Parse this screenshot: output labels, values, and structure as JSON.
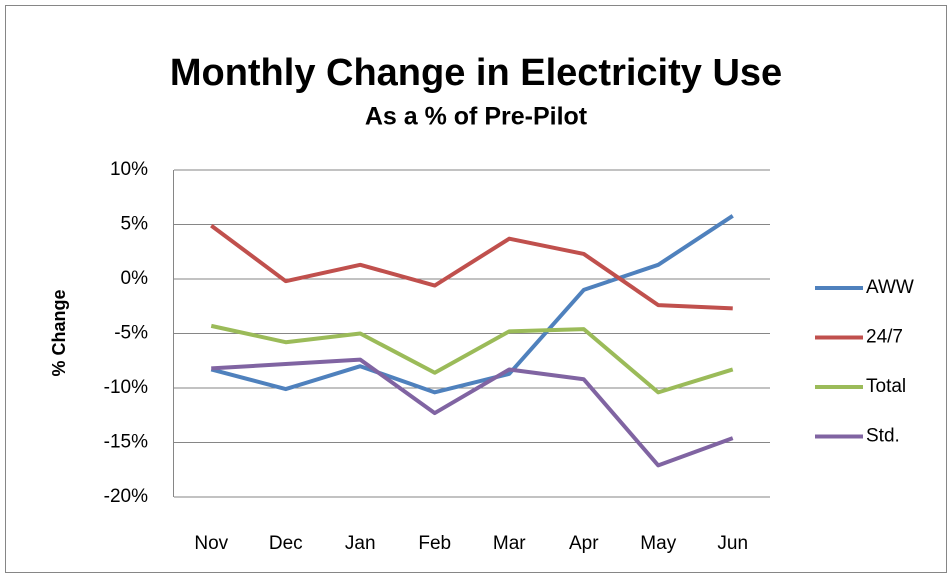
{
  "chart_data": {
    "type": "line",
    "title": "Monthly Change in Electricity Use",
    "subtitle": "As a % of Pre-Pilot",
    "y_label": "% Change",
    "categories": [
      "Nov",
      "Dec",
      "Jan",
      "Feb",
      "Mar",
      "Apr",
      "May",
      "Jun"
    ],
    "series": [
      {
        "name": "AWW",
        "color": "#4f81bd",
        "values": [
          -8.3,
          -10.1,
          -8.0,
          -10.4,
          -8.7,
          -1.0,
          1.3,
          5.8
        ]
      },
      {
        "name": "24/7",
        "color": "#c0504d",
        "values": [
          4.9,
          -0.2,
          1.3,
          -0.6,
          3.7,
          2.3,
          -2.4,
          -2.7
        ]
      },
      {
        "name": "Total",
        "color": "#9bbb59",
        "values": [
          -4.3,
          -5.8,
          -5.0,
          -8.6,
          -4.8,
          -4.6,
          -10.4,
          -8.3
        ]
      },
      {
        "name": "Std.",
        "color": "#8064a2",
        "values": [
          -8.2,
          -7.8,
          -7.4,
          -12.3,
          -8.3,
          -9.2,
          -17.1,
          -14.6
        ]
      }
    ],
    "ylim": [
      -20,
      10
    ],
    "yticks": [
      {
        "value": -20,
        "label": "-20%"
      },
      {
        "value": -15,
        "label": "-15%"
      },
      {
        "value": -10,
        "label": "-10%"
      },
      {
        "value": -5,
        "label": "-5%"
      },
      {
        "value": 0,
        "label": "0%"
      },
      {
        "value": 5,
        "label": "5%"
      },
      {
        "value": 10,
        "label": "10%"
      }
    ],
    "grid": true,
    "legend": "right"
  }
}
